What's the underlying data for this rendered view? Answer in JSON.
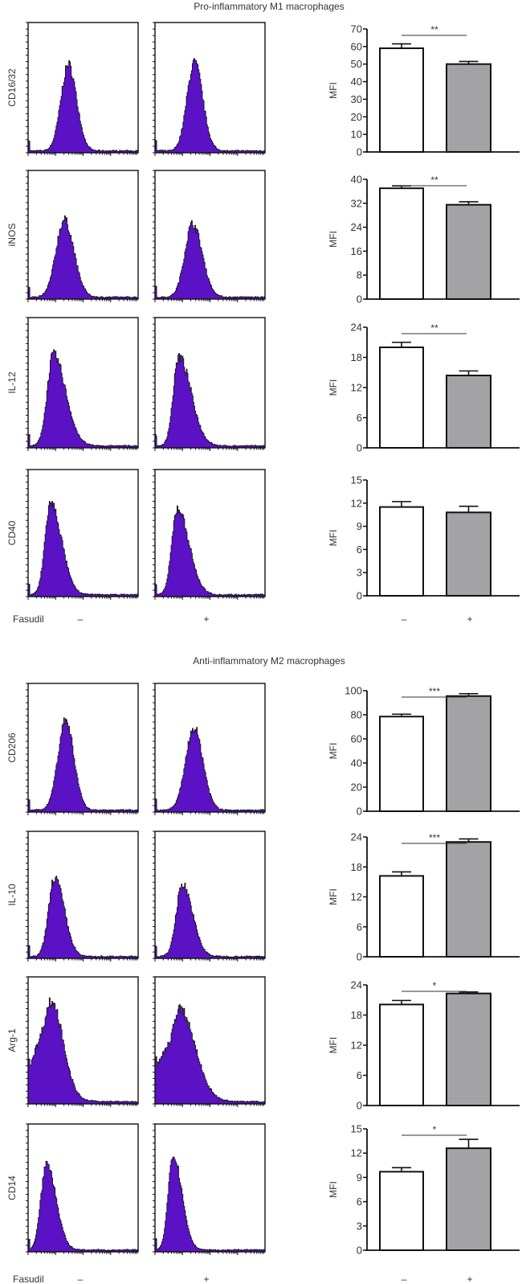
{
  "sections": [
    {
      "title": "Pro-inflammatory M1 macrophages",
      "treatment_label": "Fasudil",
      "conditions": [
        "–",
        "+"
      ]
    },
    {
      "title": "Anti-inflammatory M2 macrophages",
      "treatment_label": "Fasudil",
      "conditions": [
        "–",
        "+"
      ]
    }
  ],
  "colors": {
    "histogram_fill": "#5a12c4",
    "control_bar": "#ffffff",
    "fasudil_bar": "#a3a3a5"
  },
  "chart_data": [
    {
      "type": "bar",
      "section": 0,
      "marker": "CD16/32",
      "ylabel": "MFI",
      "ylim": [
        0,
        70
      ],
      "yticks": [
        0,
        10,
        20,
        30,
        40,
        50,
        60,
        70
      ],
      "categories": [
        "–",
        "+"
      ],
      "values": [
        59,
        50
      ],
      "errors": [
        2.5,
        1.5
      ],
      "significance": "**",
      "flow_histograms": [
        {
          "mode_log10": 1.45,
          "peak_height_fraction": 0.66,
          "sigma_left": 0.27,
          "sigma_right": 0.3
        },
        {
          "mode_log10": 1.42,
          "peak_height_fraction": 0.68,
          "sigma_left": 0.27,
          "sigma_right": 0.3
        }
      ]
    },
    {
      "type": "bar",
      "section": 0,
      "marker": "iNOS",
      "ylabel": "MFI",
      "ylim": [
        0,
        40
      ],
      "yticks": [
        0,
        8,
        16,
        24,
        32,
        40
      ],
      "categories": [
        "–",
        "+"
      ],
      "values": [
        37,
        31.5
      ],
      "errors": [
        0.8,
        1.0
      ],
      "significance": "**",
      "flow_histograms": [
        {
          "mode_log10": 1.3,
          "peak_height_fraction": 0.6,
          "sigma_left": 0.3,
          "sigma_right": 0.35
        },
        {
          "mode_log10": 1.35,
          "peak_height_fraction": 0.57,
          "sigma_left": 0.28,
          "sigma_right": 0.35
        }
      ]
    },
    {
      "type": "bar",
      "section": 0,
      "marker": "IL-12",
      "ylabel": "MFI",
      "ylim": [
        0,
        24
      ],
      "yticks": [
        0,
        6,
        12,
        18,
        24
      ],
      "categories": [
        "–",
        "+"
      ],
      "values": [
        20,
        14.4
      ],
      "errors": [
        1.0,
        0.9
      ],
      "significance": "**",
      "flow_histograms": [
        {
          "mode_log10": 0.9,
          "peak_height_fraction": 0.7,
          "sigma_left": 0.22,
          "sigma_right": 0.45
        },
        {
          "mode_log10": 0.85,
          "peak_height_fraction": 0.68,
          "sigma_left": 0.2,
          "sigma_right": 0.45
        }
      ]
    },
    {
      "type": "bar",
      "section": 0,
      "marker": "CD40",
      "ylabel": "MFI",
      "ylim": [
        0,
        15
      ],
      "yticks": [
        0,
        3,
        6,
        9,
        12,
        15
      ],
      "categories": [
        "–",
        "+"
      ],
      "values": [
        11.5,
        10.8
      ],
      "errors": [
        0.7,
        0.8
      ],
      "significance": "",
      "flow_histograms": [
        {
          "mode_log10": 0.8,
          "peak_height_fraction": 0.72,
          "sigma_left": 0.2,
          "sigma_right": 0.4
        },
        {
          "mode_log10": 0.8,
          "peak_height_fraction": 0.68,
          "sigma_left": 0.2,
          "sigma_right": 0.42
        }
      ]
    },
    {
      "type": "bar",
      "section": 1,
      "marker": "CD206",
      "ylabel": "MFI",
      "ylim": [
        0,
        100
      ],
      "yticks": [
        0,
        20,
        40,
        60,
        80,
        100
      ],
      "categories": [
        "–",
        "+"
      ],
      "values": [
        78.5,
        95.5
      ],
      "errors": [
        2.0,
        2.0
      ],
      "significance": "***",
      "flow_histograms": [
        {
          "mode_log10": 1.35,
          "peak_height_fraction": 0.7,
          "sigma_left": 0.28,
          "sigma_right": 0.3
        },
        {
          "mode_log10": 1.4,
          "peak_height_fraction": 0.64,
          "sigma_left": 0.3,
          "sigma_right": 0.33
        }
      ]
    },
    {
      "type": "bar",
      "section": 1,
      "marker": "IL-10",
      "ylabel": "MFI",
      "ylim": [
        0,
        24
      ],
      "yticks": [
        0,
        6,
        12,
        18,
        24
      ],
      "categories": [
        "–",
        "+"
      ],
      "values": [
        16.2,
        23
      ],
      "errors": [
        0.8,
        0.6
      ],
      "significance": "***",
      "flow_histograms": [
        {
          "mode_log10": 0.95,
          "peak_height_fraction": 0.62,
          "sigma_left": 0.22,
          "sigma_right": 0.35
        },
        {
          "mode_log10": 0.98,
          "peak_height_fraction": 0.57,
          "sigma_left": 0.22,
          "sigma_right": 0.37
        }
      ]
    },
    {
      "type": "bar",
      "section": 1,
      "marker": "Arg-1",
      "ylabel": "MFI",
      "ylim": [
        0,
        24
      ],
      "yticks": [
        0,
        6,
        12,
        18,
        24
      ],
      "categories": [
        "–",
        "+"
      ],
      "values": [
        20.1,
        22.3
      ],
      "errors": [
        0.8,
        0.3
      ],
      "significance": "*",
      "flow_histograms": [
        {
          "mode_log10": 0.85,
          "peak_height_fraction": 0.76,
          "sigma_left": 0.32,
          "sigma_right": 0.42
        },
        {
          "mode_log10": 0.9,
          "peak_height_fraction": 0.7,
          "sigma_left": 0.32,
          "sigma_right": 0.55
        }
      ]
    },
    {
      "type": "bar",
      "section": 1,
      "marker": "CD14",
      "ylabel": "MFI",
      "ylim": [
        0,
        15
      ],
      "yticks": [
        0,
        3,
        6,
        9,
        12,
        15
      ],
      "categories": [
        "–",
        "+"
      ],
      "values": [
        9.7,
        12.6
      ],
      "errors": [
        0.5,
        1.1
      ],
      "significance": "*",
      "flow_histograms": [
        {
          "mode_log10": 0.65,
          "peak_height_fraction": 0.68,
          "sigma_left": 0.2,
          "sigma_right": 0.35
        },
        {
          "mode_log10": 0.65,
          "peak_height_fraction": 0.74,
          "sigma_left": 0.18,
          "sigma_right": 0.32
        }
      ]
    }
  ]
}
